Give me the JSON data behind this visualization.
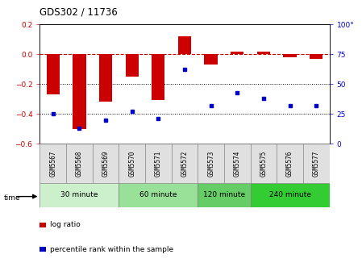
{
  "title": "GDS302 / 11736",
  "samples": [
    "GSM5567",
    "GSM5568",
    "GSM5569",
    "GSM5570",
    "GSM5571",
    "GSM5572",
    "GSM5573",
    "GSM5574",
    "GSM5575",
    "GSM5576",
    "GSM5577"
  ],
  "log_ratio": [
    -0.27,
    -0.5,
    -0.32,
    -0.15,
    -0.31,
    0.12,
    -0.07,
    0.02,
    0.02,
    -0.02,
    -0.03
  ],
  "percentile": [
    25,
    13,
    20,
    27,
    21,
    62,
    32,
    43,
    38,
    32,
    32
  ],
  "ylim_left": [
    -0.6,
    0.2
  ],
  "ylim_right": [
    0,
    100
  ],
  "yticks_left": [
    -0.6,
    -0.4,
    -0.2,
    0.0,
    0.2
  ],
  "yticks_right": [
    0,
    25,
    50,
    75,
    100
  ],
  "bar_color": "#cc0000",
  "scatter_color": "#0000cc",
  "dashed_line_color": "#cc0000",
  "dotted_line_color": "#000000",
  "groups": [
    {
      "label": "30 minute",
      "start": 0,
      "end": 3,
      "color": "#ccf0cc"
    },
    {
      "label": "60 minute",
      "start": 3,
      "end": 6,
      "color": "#99e099"
    },
    {
      "label": "120 minute",
      "start": 6,
      "end": 8,
      "color": "#66cc66"
    },
    {
      "label": "240 minute",
      "start": 8,
      "end": 11,
      "color": "#33cc33"
    }
  ],
  "legend_bar_label": "log ratio",
  "legend_scatter_label": "percentile rank within the sample",
  "time_label": "time",
  "bar_width": 0.5
}
